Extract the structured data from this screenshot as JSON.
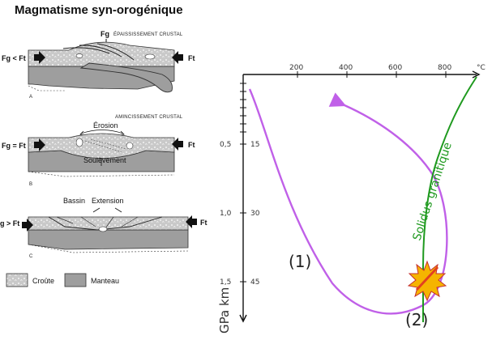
{
  "title": "Magmatisme syn-orogénique",
  "panel_a": {
    "letter": "A",
    "caption": "ÉPAISSISSEMENT CRUSTAL",
    "fg_label": "Fg",
    "left_label": "Fg < Ft",
    "right_label": "Ft"
  },
  "panel_b": {
    "letter": "B",
    "caption": "AMINCISSEMENT CRUSTAL",
    "erosion_label": "Érosion",
    "uplift_label": "Soulèvement",
    "left_label": "Fg = Ft",
    "right_label": "Ft"
  },
  "panel_c": {
    "letter": "C",
    "basin_label": "Bassin",
    "extension_label": "Extension",
    "left_label": "g > Ft",
    "right_label": "Ft"
  },
  "legend": {
    "crust_label": "Croûte",
    "mantle_label": "Manteau",
    "crust_color": "#c9c9c9",
    "mantle_color": "#9e9e9e"
  },
  "pt_diagram": {
    "temperature_unit": "°C",
    "temperature_ticks": [
      "200",
      "400",
      "600",
      "800"
    ],
    "pressure_ticks": [
      "0,5",
      "1,0",
      "1,5"
    ],
    "depth_ticks": [
      "15",
      "30",
      "45"
    ],
    "axis_label": "GPa  km",
    "solidus_label": "Solidus granitique",
    "path_label_1": "(1)",
    "path_label_2": "(2)",
    "path_color": "#c060e8",
    "solidus_color": "#1f9a1f",
    "melt_star_color": "#f5b400"
  }
}
